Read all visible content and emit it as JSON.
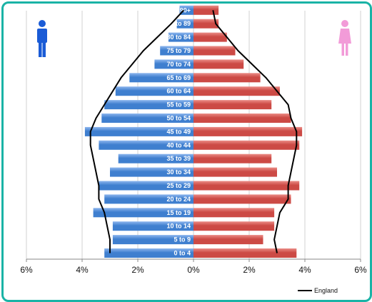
{
  "chart_data": {
    "type": "bar",
    "orientation": "horizontal-butterfly",
    "categories": [
      "0 to 4",
      "5 to 9",
      "10 to 14",
      "15 to 19",
      "20 to 24",
      "25 to 29",
      "30 to 34",
      "35 to 39",
      "40 to 44",
      "45 to 49",
      "50 to 54",
      "55 to 59",
      "60 to 64",
      "65 to 69",
      "70 to 74",
      "75 to 79",
      "80 to 84",
      "85 to 89",
      "90+"
    ],
    "series": [
      {
        "values": [
          3.2,
          2.9,
          2.9,
          3.6,
          3.2,
          3.4,
          3.0,
          2.7,
          3.4,
          3.9,
          3.3,
          3.2,
          2.8,
          2.3,
          1.4,
          1.2,
          0.9,
          0.6,
          0.5
        ],
        "color": "#3f7fcf"
      },
      {
        "values": [
          3.7,
          2.5,
          2.9,
          2.9,
          3.5,
          3.8,
          3.0,
          2.8,
          3.8,
          3.9,
          3.5,
          2.8,
          3.1,
          2.4,
          1.8,
          1.5,
          1.2,
          0.9,
          0.9
        ],
        "color": "#cc4a45"
      }
    ],
    "overlay_line": {
      "name": "England",
      "color": "#000000",
      "male": [
        3.0,
        3.0,
        3.1,
        3.2,
        3.4,
        3.4,
        3.5,
        3.6,
        3.7,
        3.7,
        3.5,
        3.2,
        2.9,
        2.6,
        2.2,
        1.8,
        1.3,
        0.8,
        0.35
      ],
      "female": [
        3.0,
        2.9,
        3.0,
        3.1,
        3.4,
        3.4,
        3.5,
        3.6,
        3.7,
        3.7,
        3.5,
        3.4,
        3.0,
        2.6,
        2.1,
        1.6,
        1.2,
        0.8,
        0.7
      ]
    },
    "x_ticks": [
      "6%",
      "4%",
      "2%",
      "0%",
      "2%",
      "4%",
      "6%"
    ],
    "xlim": [
      -6,
      6
    ],
    "grid": "vertical",
    "legend": "bottom-right"
  },
  "icons": {
    "male": "male-figure-icon",
    "female": "female-figure-icon",
    "male_color": "#1a5bd6",
    "female_color": "#f29bd8"
  }
}
